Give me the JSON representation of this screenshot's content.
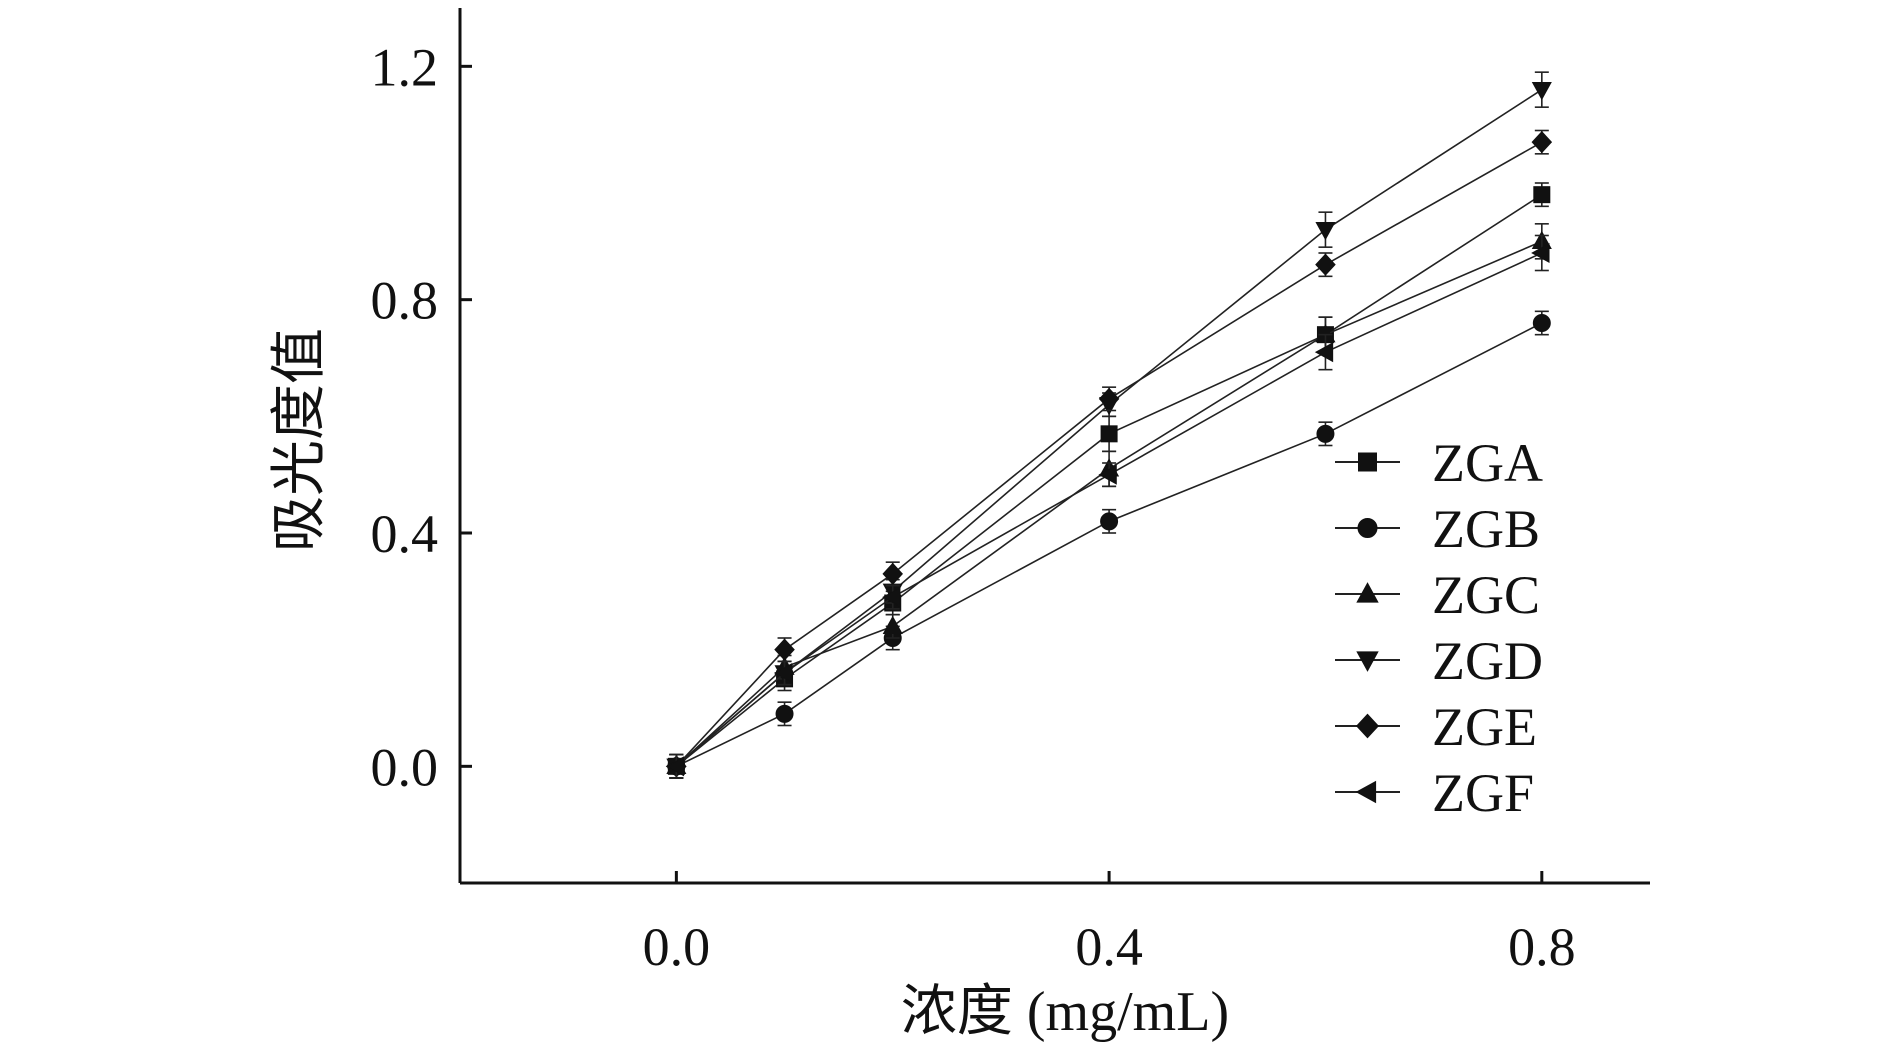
{
  "chart_data": {
    "type": "line",
    "xlabel": "浓度 (mg/mL)",
    "ylabel": "吸光度值",
    "xlim": [
      -0.2,
      0.9
    ],
    "ylim": [
      -0.2,
      1.3
    ],
    "x": [
      0.0,
      0.1,
      0.2,
      0.4,
      0.6,
      0.8
    ],
    "xticks": [
      0.0,
      0.4,
      0.8
    ],
    "xtick_labels": [
      "0.0",
      "0.4",
      "0.8"
    ],
    "yticks": [
      0.0,
      0.4,
      0.8,
      1.2
    ],
    "ytick_labels": [
      "0.0",
      "0.4",
      "0.8",
      "1.2"
    ],
    "grid": false,
    "legend_position": "right",
    "error_bars": true,
    "series": [
      {
        "name": "ZGA",
        "marker": "square",
        "values": [
          0.0,
          0.15,
          0.28,
          0.57,
          0.74,
          0.98
        ],
        "errors": [
          0.02,
          0.02,
          0.02,
          0.03,
          0.03,
          0.02
        ]
      },
      {
        "name": "ZGB",
        "marker": "circle",
        "values": [
          0.0,
          0.09,
          0.22,
          0.42,
          0.57,
          0.76
        ],
        "errors": [
          0.02,
          0.02,
          0.02,
          0.02,
          0.02,
          0.02
        ]
      },
      {
        "name": "ZGC",
        "marker": "triangle-up",
        "values": [
          0.0,
          0.17,
          0.24,
          0.51,
          0.74,
          0.9
        ],
        "errors": [
          0.02,
          0.02,
          0.02,
          0.03,
          0.03,
          0.03
        ]
      },
      {
        "name": "ZGD",
        "marker": "triangle-down",
        "values": [
          0.0,
          0.16,
          0.3,
          0.62,
          0.92,
          1.16
        ],
        "errors": [
          0.02,
          0.02,
          0.02,
          0.02,
          0.03,
          0.03
        ]
      },
      {
        "name": "ZGE",
        "marker": "diamond",
        "values": [
          0.0,
          0.2,
          0.33,
          0.63,
          0.86,
          1.07
        ],
        "errors": [
          0.02,
          0.02,
          0.02,
          0.02,
          0.02,
          0.02
        ]
      },
      {
        "name": "ZGF",
        "marker": "triangle-left",
        "values": [
          0.0,
          0.16,
          0.29,
          0.5,
          0.71,
          0.88
        ],
        "errors": [
          0.02,
          0.02,
          0.02,
          0.02,
          0.03,
          0.03
        ]
      }
    ]
  }
}
